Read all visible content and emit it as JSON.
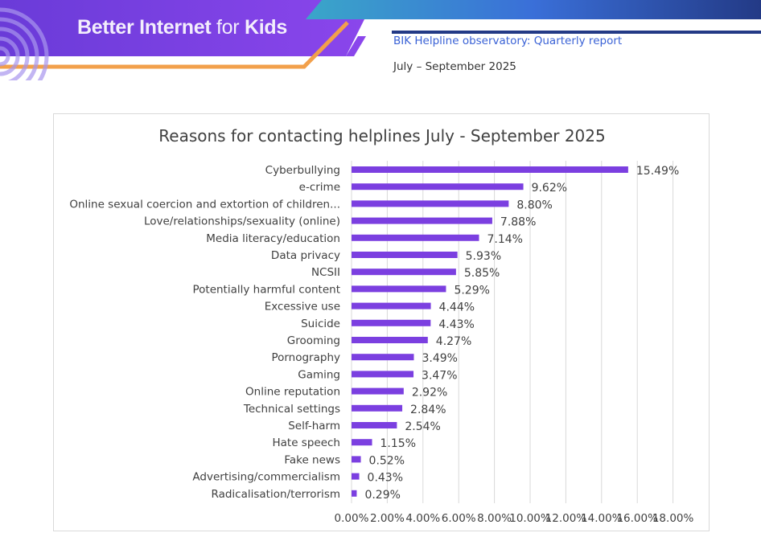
{
  "header": {
    "brand_main": "Better Internet",
    "brand_for": "for",
    "brand_kids": "Kids",
    "report_title": "BIK Helpline observatory: Quarterly report",
    "report_period": "July – September 2025"
  },
  "colors": {
    "bar": "#7b3fe0",
    "grid": "#d9d9d9",
    "text": "#404040"
  },
  "chart_data": {
    "type": "bar",
    "orientation": "horizontal",
    "title": "Reasons for contacting helplines July - September 2025",
    "xlabel": "",
    "ylabel": "",
    "xlim": [
      0,
      18
    ],
    "xticks": [
      "0.00%",
      "2.00%",
      "4.00%",
      "6.00%",
      "8.00%",
      "10.00%",
      "12.00%",
      "14.00%",
      "16.00%",
      "18.00%"
    ],
    "grid": "vertical",
    "categories": [
      "Cyberbullying",
      "e-crime",
      "Online sexual coercion and extortion of children...",
      "Love/relationships/sexuality (online)",
      "Media literacy/education",
      "Data privacy",
      "NCSII",
      "Potentially harmful content",
      "Excessive use",
      "Suicide",
      "Grooming",
      "Pornography",
      "Gaming",
      "Online reputation",
      "Technical settings",
      "Self-harm",
      "Hate speech",
      "Fake news",
      "Advertising/commercialism",
      "Radicalisation/terrorism"
    ],
    "values": [
      15.49,
      9.62,
      8.8,
      7.88,
      7.14,
      5.93,
      5.85,
      5.29,
      4.44,
      4.43,
      4.27,
      3.49,
      3.47,
      2.92,
      2.84,
      2.54,
      1.15,
      0.52,
      0.43,
      0.29
    ],
    "data_labels": [
      "15.49%",
      "9.62%",
      "8.80%",
      "7.88%",
      "7.14%",
      "5.93%",
      "5.85%",
      "5.29%",
      "4.44%",
      "4.43%",
      "4.27%",
      "3.49%",
      "3.47%",
      "2.92%",
      "2.84%",
      "2.54%",
      "1.15%",
      "0.52%",
      "0.43%",
      "0.29%"
    ]
  }
}
